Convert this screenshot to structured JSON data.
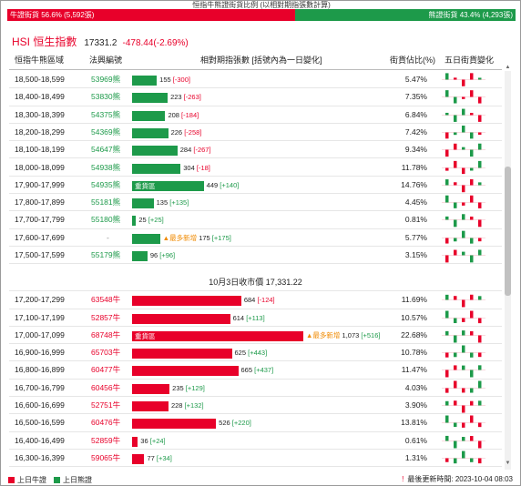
{
  "top_title": "恒指牛熊證街貨比例 (以相對期指張數計算)",
  "ratio": {
    "bull_label": "牛證街貨 56.6% (5,592張)",
    "bull_pct": 56.6,
    "bear_label": "熊證街貨 43.4% (4,293張)"
  },
  "hsi": {
    "name": "HSI 恒生指數",
    "price": "17331.2",
    "change": "-478.44(-2.69%)"
  },
  "headers": {
    "range": "恒指牛熊區域",
    "code": "法興編號",
    "contracts": "相對期指張數 [括號內為一日變化]",
    "pct": "街貨佔比(%)",
    "spark": "五日街貨變化"
  },
  "close_label": "10月3日收市價 17,331.22",
  "heavy_label": "重貨區",
  "new_label": "▲最多新增",
  "bear_rows": [
    {
      "range": "18,500-18,599",
      "code": "53969熊",
      "contracts": "155",
      "delta": "[-300]",
      "pct": "5.47%",
      "value": 155
    },
    {
      "range": "18,400-18,499",
      "code": "53830熊",
      "contracts": "223",
      "delta": "[-263]",
      "pct": "7.35%",
      "value": 223
    },
    {
      "range": "18,300-18,399",
      "code": "54375熊",
      "contracts": "208",
      "delta": "[-184]",
      "pct": "6.84%",
      "value": 208
    },
    {
      "range": "18,200-18,299",
      "code": "54369熊",
      "contracts": "226",
      "delta": "[-258]",
      "pct": "7.42%",
      "value": 226
    },
    {
      "range": "18,100-18,199",
      "code": "54647熊",
      "contracts": "284",
      "delta": "[-267]",
      "pct": "9.34%",
      "value": 284
    },
    {
      "range": "18,000-18,099",
      "code": "54938熊",
      "contracts": "304",
      "delta": "[-18]",
      "pct": "11.78%",
      "value": 304
    },
    {
      "range": "17,900-17,999",
      "code": "54935熊",
      "contracts": "449",
      "delta": "[+140]",
      "pct": "14.76%",
      "value": 449,
      "heavy": true
    },
    {
      "range": "17,800-17,899",
      "code": "55181熊",
      "contracts": "135",
      "delta": "[+135]",
      "pct": "4.45%",
      "value": 135
    },
    {
      "range": "17,700-17,799",
      "code": "55180熊",
      "contracts": "25",
      "delta": "[+25]",
      "pct": "0.81%",
      "value": 25
    },
    {
      "range": "17,600-17,699",
      "code": "-",
      "contracts": "175",
      "delta": "[+175]",
      "pct": "5.77%",
      "value": 175,
      "new": true
    },
    {
      "range": "17,500-17,599",
      "code": "55179熊",
      "contracts": "96",
      "delta": "[+96]",
      "pct": "3.15%",
      "value": 96
    }
  ],
  "bull_rows": [
    {
      "range": "17,200-17,299",
      "code": "63548牛",
      "contracts": "684",
      "delta": "[-124]",
      "pct": "11.69%",
      "value": 684
    },
    {
      "range": "17,100-17,199",
      "code": "52857牛",
      "contracts": "614",
      "delta": "[+113]",
      "pct": "10.57%",
      "value": 614
    },
    {
      "range": "17,000-17,099",
      "code": "68748牛",
      "contracts": "1,073",
      "delta": "[+516]",
      "pct": "22.68%",
      "value": 1073,
      "heavy": true,
      "new": true
    },
    {
      "range": "16,900-16,999",
      "code": "65703牛",
      "contracts": "625",
      "delta": "[+443]",
      "pct": "10.78%",
      "value": 625
    },
    {
      "range": "16,800-16,899",
      "code": "60477牛",
      "contracts": "665",
      "delta": "[+437]",
      "pct": "11.47%",
      "value": 665
    },
    {
      "range": "16,700-16,799",
      "code": "60456牛",
      "contracts": "235",
      "delta": "[+129]",
      "pct": "4.03%",
      "value": 235
    },
    {
      "range": "16,600-16,699",
      "code": "52751牛",
      "contracts": "228",
      "delta": "[+132]",
      "pct": "3.90%",
      "value": 228
    },
    {
      "range": "16,500-16,599",
      "code": "60476牛",
      "contracts": "526",
      "delta": "[+220]",
      "pct": "13.81%",
      "value": 526
    },
    {
      "range": "16,400-16,499",
      "code": "52859牛",
      "contracts": "36",
      "delta": "[+24]",
      "pct": "0.61%",
      "value": 36
    },
    {
      "range": "16,300-16,399",
      "code": "59065牛",
      "contracts": "77",
      "delta": "[+34]",
      "pct": "1.31%",
      "value": 77
    }
  ],
  "legend": {
    "bull": "上日牛證",
    "bear": "上日熊證"
  },
  "update": {
    "mark": "!",
    "text": "最後更新時間: 2023-10-04 08:03"
  },
  "colors": {
    "bull": "#e8002a",
    "bear": "#1d9a4a",
    "new": "#f08a00"
  }
}
